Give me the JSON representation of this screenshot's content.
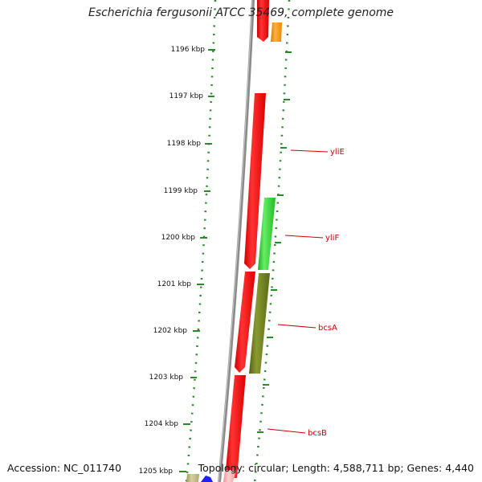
{
  "title": "Escherichia fergusonii ATCC 35469, complete genome",
  "footer": {
    "accession": "Accession: NC_011740",
    "info": "Topology: circular; Length: 4,588,711 bp; Genes: 4,440"
  },
  "colors": {
    "tick": "#2a8a2a",
    "backbone": "#888888",
    "label": "#cc0000",
    "forward_gene": "#ff0000",
    "green_gene": "#33cc33",
    "olive_gene": "#6b7a1e",
    "orange_gene": "#ff9900"
  },
  "scale_labels": [
    "1196 kbp",
    "1197 kbp",
    "1198 kbp",
    "1199 kbp",
    "1200 kbp",
    "1201 kbp",
    "1202 kbp",
    "1203 kbp",
    "1204 kbp",
    "1205 kbp"
  ],
  "gene_labels": [
    "yliE",
    "yliF",
    "bcsA",
    "bcsB"
  ]
}
